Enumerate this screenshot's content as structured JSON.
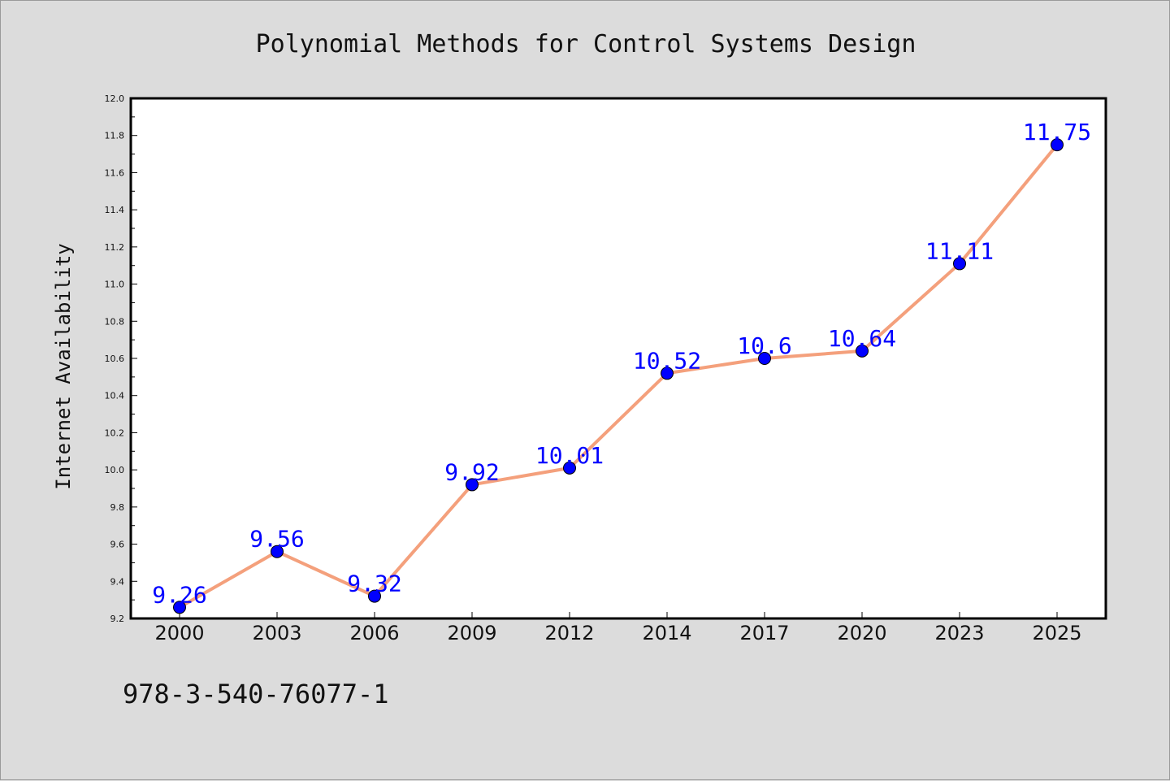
{
  "chart_data": {
    "type": "line",
    "title": "Polynomial Methods for Control Systems Design",
    "xlabel": "",
    "ylabel": "Internet Availability",
    "categories": [
      "2000",
      "2003",
      "2006",
      "2009",
      "2012",
      "2014",
      "2017",
      "2020",
      "2023",
      "2025"
    ],
    "series": [
      {
        "values": [
          9.26,
          9.56,
          9.32,
          9.92,
          10.01,
          10.52,
          10.6,
          10.64,
          11.11,
          11.75
        ],
        "labels": [
          "9.26",
          "9.56",
          "9.32",
          "9.92",
          "10.01",
          "10.52",
          "10.6",
          "10.64",
          "11.11",
          "11.75"
        ],
        "line_color": "#f4a07c",
        "marker_color": "#0000ff",
        "label_color": "#0000ff"
      }
    ],
    "ylim": [
      9.2,
      12.0
    ],
    "yticks": [
      "9.2",
      "9.4",
      "9.6",
      "9.8",
      "10.0",
      "10.2",
      "10.4",
      "10.6",
      "10.8",
      "11.0",
      "11.2",
      "11.4",
      "11.6",
      "11.8",
      "12.0"
    ],
    "grid": false,
    "legend": "none",
    "background_color": "#dcdcdc",
    "plot_background_color": "#ffffff"
  },
  "footer": {
    "isbn": "978-3-540-76077-1"
  }
}
